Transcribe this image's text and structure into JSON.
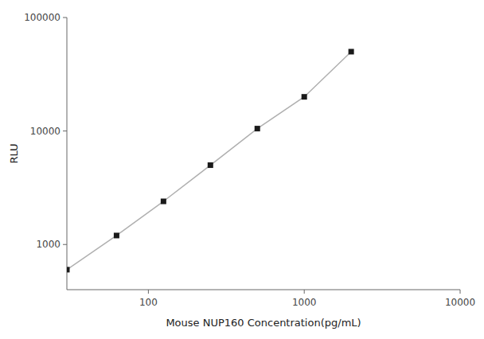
{
  "chart_data": {
    "type": "line",
    "x": [
      30,
      62.5,
      125,
      250,
      500,
      1000,
      2000
    ],
    "values": [
      600,
      1200,
      2400,
      5000,
      10500,
      20000,
      50000
    ],
    "xlabel": "Mouse NUP160 Concentration(pg/mL)",
    "ylabel": "RLU",
    "xlim": [
      30,
      10000
    ],
    "ylim": [
      400,
      100000
    ],
    "xticks": [
      100,
      1000,
      10000
    ],
    "yticks": [
      1000,
      10000,
      100000
    ],
    "log": true,
    "marker": "square",
    "color": "#1a1a1a",
    "grid": false
  }
}
